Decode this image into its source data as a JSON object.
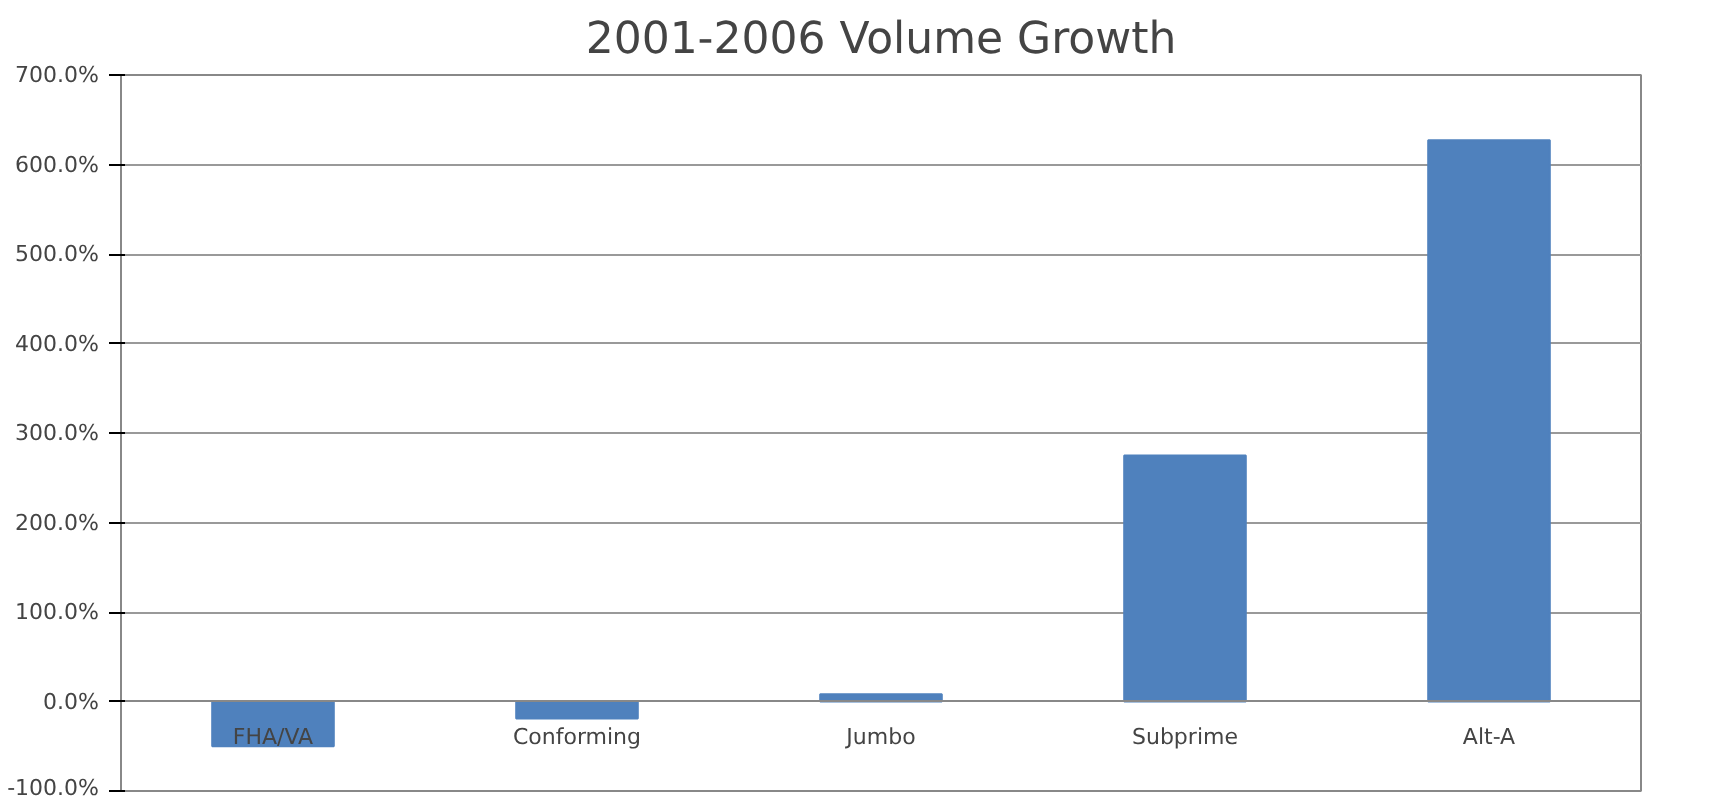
{
  "chart_data": {
    "type": "bar",
    "title": "2001-2006 Volume Growth",
    "categories": [
      "FHA/VA",
      "Conforming",
      "Jumbo",
      "Subprime",
      "Alt-A"
    ],
    "values": [
      -50,
      -19,
      8,
      275,
      627
    ],
    "color": "#4f81bd",
    "ylim": [
      -100,
      700
    ],
    "yticks": [
      {
        "value": -100,
        "label": "-100.0%"
      },
      {
        "value": 0,
        "label": "0.0%"
      },
      {
        "value": 100,
        "label": "100.0%"
      },
      {
        "value": 200,
        "label": "200.0%"
      },
      {
        "value": 300,
        "label": "300.0%"
      },
      {
        "value": 400,
        "label": "400.0%"
      },
      {
        "value": 500,
        "label": "500.0%"
      },
      {
        "value": 600,
        "label": "600.0%"
      },
      {
        "value": 700,
        "label": "700.0%"
      }
    ],
    "grid": "y"
  }
}
